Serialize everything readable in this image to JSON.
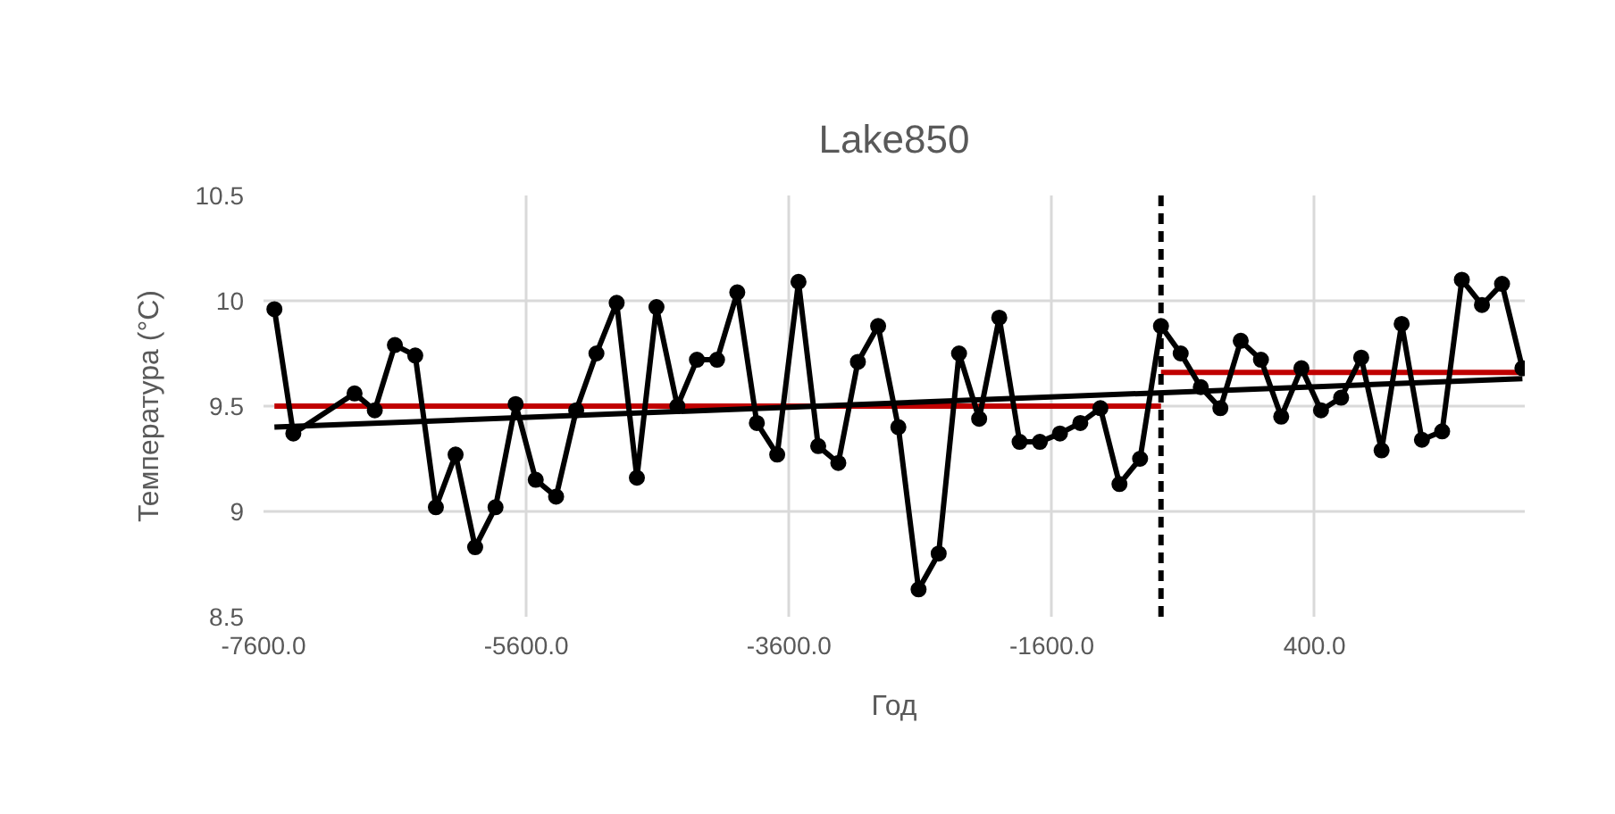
{
  "chart_data": {
    "type": "line",
    "title": "Lake850",
    "xlabel": "Год",
    "ylabel": "Температура (°C)",
    "xlim": [
      -7600,
      2000
    ],
    "ylim": [
      8.5,
      10.5
    ],
    "xticks": [
      {
        "value": -7600,
        "label": "-7600.0"
      },
      {
        "value": -5600,
        "label": "-5600.0"
      },
      {
        "value": -3600,
        "label": "-3600.0"
      },
      {
        "value": -1600,
        "label": "-1600.0"
      },
      {
        "value": 400,
        "label": "400.0"
      }
    ],
    "yticks": [
      8.5,
      9,
      9.5,
      10,
      10.5
    ],
    "grid": true,
    "series": [
      {
        "color": "#c00000",
        "marker": "none",
        "x": [
          -7517,
          -769
        ],
        "values": [
          9.5,
          9.5
        ]
      },
      {
        "color": "#c00000",
        "marker": "none",
        "x": [
          -769,
          1982
        ],
        "values": [
          9.66,
          9.66
        ]
      },
      {
        "color": "#000000",
        "marker": "circle",
        "x": [
          -7517,
          -7373,
          -6907,
          -6753,
          -6600,
          -6445,
          -6288,
          -6138,
          -5989,
          -5834,
          -5681,
          -5528,
          -5373,
          -5220,
          -5066,
          -4912,
          -4758,
          -4609,
          -4450,
          -4301,
          -4148,
          -3994,
          -3845,
          -3690,
          -3528,
          -3378,
          -3225,
          -3076,
          -2922,
          -2768,
          -2614,
          -2461,
          -2306,
          -2153,
          -2000,
          -1845,
          -1691,
          -1538,
          -1383,
          -1230,
          -1085,
          -928,
          -769,
          -619,
          -466,
          -317,
          -162,
          -8,
          146,
          300,
          449,
          602,
          755,
          910,
          1063,
          1217,
          1371,
          1521,
          1674,
          1827,
          1982
        ],
        "values": [
          9.96,
          9.37,
          9.56,
          9.48,
          9.79,
          9.74,
          9.02,
          9.27,
          8.83,
          9.02,
          9.51,
          9.15,
          9.07,
          9.48,
          9.75,
          9.99,
          9.16,
          9.97,
          9.5,
          9.72,
          9.72,
          10.04,
          9.42,
          9.27,
          10.09,
          9.31,
          9.23,
          9.71,
          9.88,
          9.4,
          8.63,
          8.8,
          9.75,
          9.44,
          9.92,
          9.33,
          9.33,
          9.37,
          9.42,
          9.49,
          9.13,
          9.25,
          9.88,
          9.75,
          9.59,
          9.49,
          9.81,
          9.72,
          9.45,
          9.68,
          9.48,
          9.54,
          9.73,
          9.29,
          9.89,
          9.34,
          9.38,
          10.1,
          9.98,
          10.08,
          9.68
        ]
      },
      {
        "color": "#000000",
        "marker": "none",
        "x": [
          -7517,
          1982
        ],
        "values": [
          9.4,
          9.63
        ]
      }
    ],
    "ref_lines": [
      {
        "axis": "x",
        "value": -769,
        "color": "#000000",
        "line_style": "dashed"
      }
    ]
  }
}
